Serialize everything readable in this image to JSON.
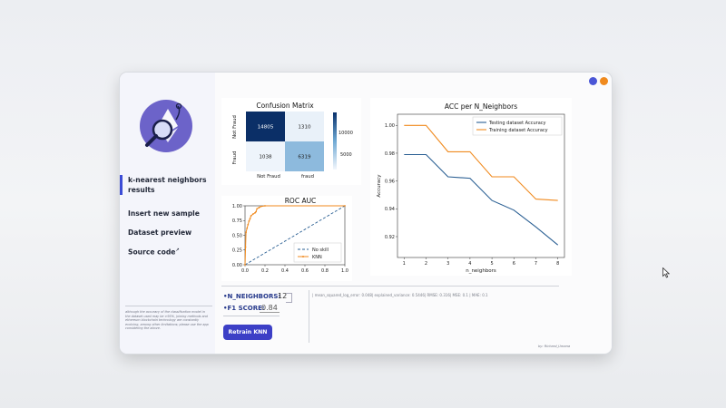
{
  "window_controls": {
    "minimize_color": "#4a56d6",
    "close_color": "#f08a1e"
  },
  "sidebar": {
    "logo_icon": "magnifier-ethereum-icon",
    "items": [
      {
        "label_line1": "k-nearest neighbors",
        "label_line2": "results",
        "active": true
      },
      {
        "label": "Insert new sample"
      },
      {
        "label": "Dataset preview"
      },
      {
        "label": "Source code",
        "suffix_icon": "external-link-icon"
      }
    ],
    "disclaimer": "although the accuracy of the classification model in the dataset used may be >95%, joining methods and ethereum blockchain technology are constantly evolving, among other limitations; please use the app considering the above."
  },
  "controls": {
    "n_neighbors_label": "•N_NEIGHBORS:",
    "n_neighbors_value": "12",
    "f1_label": "•F1 SCORE:",
    "f1_value": "0.84",
    "retrain_label": "Retrain KNN"
  },
  "metrics_text": "| mean_squared_log_error: 0.048| explained_variance: 0.5446| RMSE: 0.316| MSE: 0.1 | MAE: 0.1",
  "byline": "by: Richard_Umana",
  "chart_data": [
    {
      "type": "heatmap",
      "title": "Confusion Matrix",
      "row_labels": [
        "Not Fraud",
        "Fraud"
      ],
      "col_labels": [
        "Not Fraud",
        "fraud"
      ],
      "values": [
        [
          14805,
          1310
        ],
        [
          1038,
          6319
        ]
      ],
      "colorbar_ticks": [
        "10000",
        "5000"
      ],
      "colors": {
        "high": "#0b2f67",
        "mid": "#6fa9d4",
        "low": "#eef4fb"
      }
    },
    {
      "type": "line",
      "title": "ROC AUC",
      "xlim": [
        0,
        1
      ],
      "ylim": [
        0,
        1
      ],
      "x_ticks": [
        "0.0",
        "0.2",
        "0.4",
        "0.6",
        "0.8",
        "1.0"
      ],
      "y_ticks": [
        "0.00",
        "0.25",
        "0.50",
        "0.75",
        "1.00"
      ],
      "series": [
        {
          "name": "No skill",
          "color": "#2a5f93",
          "dashed": true,
          "points": [
            [
              0,
              0
            ],
            [
              1,
              1
            ]
          ]
        },
        {
          "name": "KNN",
          "color": "#f08a1e",
          "marker": true,
          "points": [
            [
              0,
              0
            ],
            [
              0.005,
              0.3
            ],
            [
              0.01,
              0.55
            ],
            [
              0.02,
              0.62
            ],
            [
              0.03,
              0.68
            ],
            [
              0.04,
              0.74
            ],
            [
              0.05,
              0.78
            ],
            [
              0.06,
              0.83
            ],
            [
              0.08,
              0.86
            ],
            [
              0.1,
              0.88
            ],
            [
              0.11,
              0.9
            ],
            [
              0.12,
              0.95
            ],
            [
              0.14,
              0.97
            ],
            [
              0.16,
              0.99
            ],
            [
              0.2,
              1.0
            ],
            [
              1.0,
              1.0
            ]
          ]
        }
      ]
    },
    {
      "type": "line",
      "title": "ACC per N_Neighbors",
      "xlabel": "n_neighbors",
      "ylabel": "Accuracy",
      "xlim": [
        0.7,
        8.3
      ],
      "ylim": [
        0.905,
        1.008
      ],
      "x_ticks": [
        "1",
        "2",
        "3",
        "4",
        "5",
        "6",
        "7",
        "8"
      ],
      "y_ticks": [
        "0.92",
        "0.94",
        "0.96",
        "0.98",
        "1.00"
      ],
      "x": [
        1,
        2,
        3,
        4,
        5,
        6,
        7,
        8
      ],
      "series": [
        {
          "name": "Testing dataset Accuracy",
          "color": "#2a5f93",
          "values": [
            0.979,
            0.979,
            0.963,
            0.962,
            0.946,
            0.939,
            0.927,
            0.914
          ]
        },
        {
          "name": "Training dataset Accuracy",
          "color": "#f08a1e",
          "values": [
            1.0,
            1.0,
            0.981,
            0.981,
            0.963,
            0.963,
            0.947,
            0.946
          ]
        }
      ],
      "legend_position": "top-right"
    }
  ]
}
